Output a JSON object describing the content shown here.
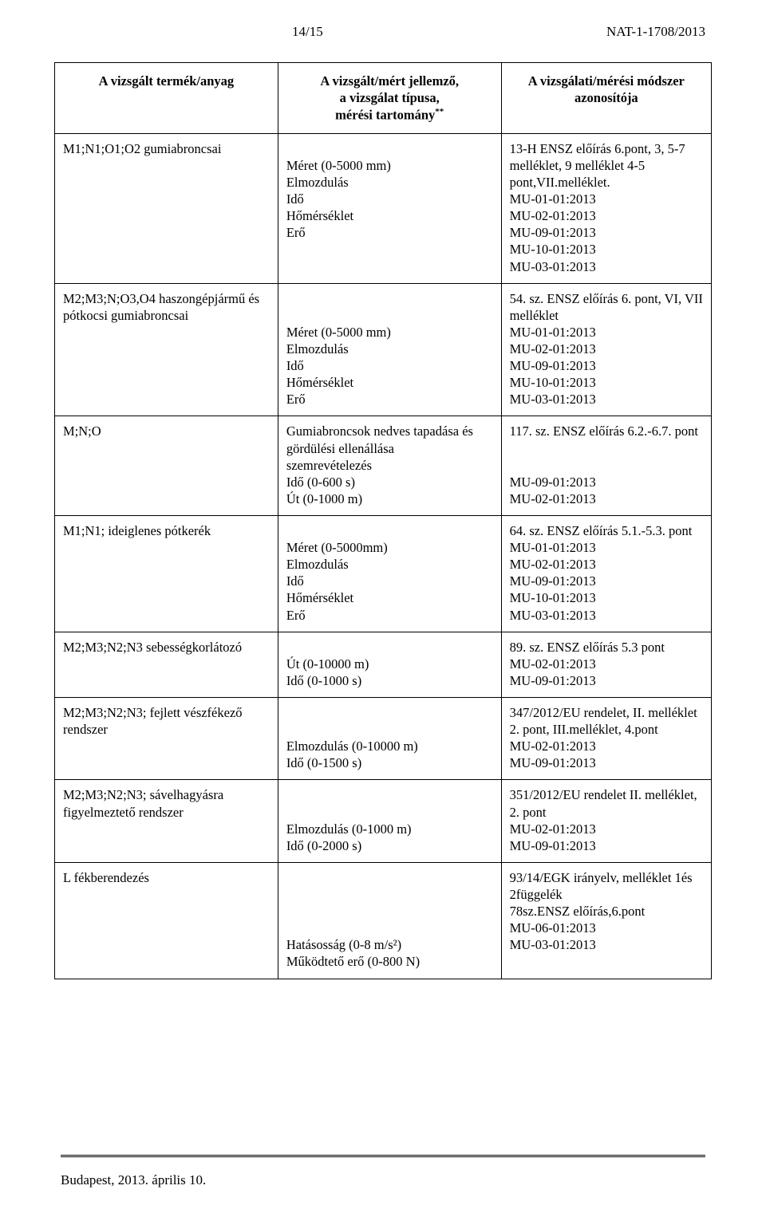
{
  "header": {
    "page_number": "14/15",
    "doc_ref": "NAT-1-1708/2013"
  },
  "table": {
    "headers": {
      "col1": "A vizsgált termék/anyag",
      "col2_line1": "A vizsgált/mért jellemző,",
      "col2_line2": "a vizsgálat típusa,",
      "col2_line3": "mérési tartomány",
      "col2_sup": "**",
      "col3_line1": "A vizsgálati/mérési módszer",
      "col3_line2": "azonosítója"
    },
    "rows": [
      {
        "c1": [
          "M1;N1;O1;O2 gumiabroncsai"
        ],
        "c2": [
          "",
          "Méret (0-5000 mm)",
          "Elmozdulás",
          "Idő",
          "Hőmérséklet",
          "Erő"
        ],
        "c3": [
          "13-H ENSZ előírás 6.pont, 3, 5-7",
          "melléklet, 9 melléklet 4-5",
          "pont,VII.melléklet.",
          "MU-01-01:2013",
          "MU-02-01:2013",
          "MU-09-01:2013",
          "MU-10-01:2013",
          "MU-03-01:2013"
        ]
      },
      {
        "c1": [
          "M2;M3;N;O3,O4 haszongépjármű és",
          "pótkocsi gumiabroncsai"
        ],
        "c2": [
          "",
          "",
          "Méret (0-5000 mm)",
          "Elmozdulás",
          "Idő",
          "Hőmérséklet",
          "Erő"
        ],
        "c3": [
          "54. sz. ENSZ előírás 6. pont, VI, VII",
          "melléklet",
          "MU-01-01:2013",
          "MU-02-01:2013",
          "MU-09-01:2013",
          "MU-10-01:2013",
          "MU-03-01:2013"
        ]
      },
      {
        "c1": [
          "M;N;O"
        ],
        "c2": [
          "Gumiabroncsok nedves tapadása és",
          "gördülési ellenállása",
          "szemrevételezés",
          "Idő (0-600 s)",
          "Út (0-1000 m)"
        ],
        "c3": [
          "117. sz. ENSZ előírás 6.2.-6.7. pont",
          "",
          "",
          "MU-09-01:2013",
          "MU-02-01:2013"
        ]
      },
      {
        "c1": [
          "M1;N1; ideiglenes pótkerék"
        ],
        "c2": [
          "",
          "Méret (0-5000mm)",
          "Elmozdulás",
          "Idő",
          "Hőmérséklet",
          "Erő"
        ],
        "c3": [
          "64. sz. ENSZ előírás 5.1.-5.3. pont",
          "MU-01-01:2013",
          "MU-02-01:2013",
          "MU-09-01:2013",
          "MU-10-01:2013",
          "MU-03-01:2013"
        ]
      },
      {
        "c1": [
          "M2;M3;N2;N3 sebességkorlátozó"
        ],
        "c2": [
          "",
          "Út (0-10000 m)",
          "Idő (0-1000 s)"
        ],
        "c3": [
          "89. sz. ENSZ előírás 5.3 pont",
          "MU-02-01:2013",
          "MU-09-01:2013"
        ]
      },
      {
        "c1": [
          "M2;M3;N2;N3; fejlett vészfékező",
          "rendszer"
        ],
        "c2": [
          "",
          "",
          "Elmozdulás (0-10000 m)",
          "Idő (0-1500 s)"
        ],
        "c3": [
          "347/2012/EU rendelet, II. melléklet",
          "2. pont, III.melléklet, 4.pont",
          "MU-02-01:2013",
          "MU-09-01:2013"
        ]
      },
      {
        "c1": [
          "M2;M3;N2;N3; sávelhagyásra",
          "figyelmeztető rendszer"
        ],
        "c2": [
          "",
          "",
          "Elmozdulás (0-1000 m)",
          "Idő (0-2000 s)"
        ],
        "c3": [
          "351/2012/EU rendelet II. melléklet,",
          "2. pont",
          "MU-02-01:2013",
          "MU-09-01:2013"
        ]
      },
      {
        "c1": [
          "L fékberendezés"
        ],
        "c2": [
          "",
          "",
          "",
          "",
          "Hatásosság (0-8 m/s²)",
          "Működtető erő (0-800 N)"
        ],
        "c3": [
          "93/14/EGK irányelv, melléklet 1és",
          "2függelék",
          "78sz.ENSZ előírás,6.pont",
          "MU-06-01:2013",
          "MU-03-01:2013",
          ""
        ]
      }
    ]
  },
  "footer": {
    "text": "Budapest, 2013. április 10."
  }
}
